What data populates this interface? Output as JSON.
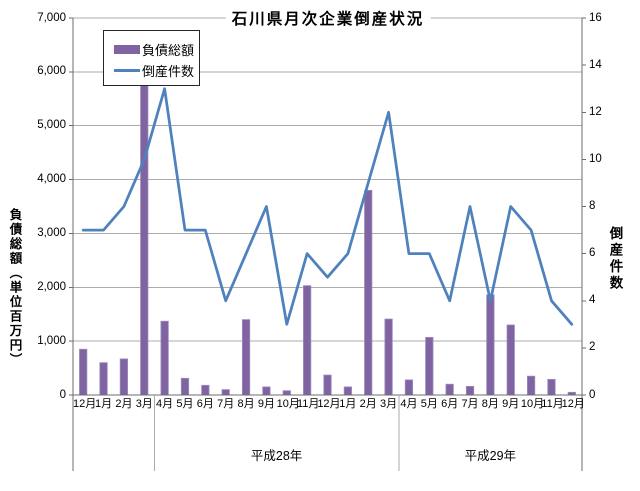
{
  "chart_data": {
    "type": "bar+line",
    "title": "石川県月次企業倒産状況",
    "categories": [
      "12月",
      "1月",
      "2月",
      "3月",
      "4月",
      "5月",
      "6月",
      "7月",
      "8月",
      "9月",
      "10月",
      "11月",
      "12月",
      "1月",
      "2月",
      "3月",
      "4月",
      "5月",
      "6月",
      "7月",
      "8月",
      "9月",
      "10月",
      "11月",
      "12月"
    ],
    "category_groups": [
      {
        "label": "",
        "start": 0,
        "end": 3
      },
      {
        "label": "平成28年",
        "start": 4,
        "end": 15
      },
      {
        "label": "平成29年",
        "start": 16,
        "end": 24
      }
    ],
    "series": [
      {
        "name": "負債総額",
        "type": "bar",
        "axis": "left",
        "color": "#8064A2",
        "edge_color": "#9B8BBE",
        "values": [
          850,
          600,
          670,
          5800,
          1370,
          310,
          180,
          100,
          1400,
          150,
          80,
          2030,
          370,
          150,
          3800,
          1410,
          280,
          1070,
          200,
          160,
          1860,
          1300,
          350,
          290,
          50
        ]
      },
      {
        "name": "倒産件数",
        "type": "line",
        "axis": "right",
        "color": "#4F81BD",
        "values": [
          7,
          7,
          8,
          10,
          13,
          7,
          7,
          4,
          6,
          8,
          3,
          6,
          5,
          6,
          9,
          12,
          6,
          6,
          4,
          8,
          4,
          8,
          7,
          4,
          3
        ]
      }
    ],
    "y_left": {
      "title": "負債総額（単位百万円）",
      "min": 0,
      "max": 7000,
      "step": 1000,
      "tick_labels": [
        "0",
        "1,000",
        "2,000",
        "3,000",
        "4,000",
        "5,000",
        "6,000",
        "7,000"
      ]
    },
    "y_right": {
      "title": "倒産件数",
      "min": 0,
      "max": 16,
      "step": 2,
      "tick_labels": [
        "0",
        "2",
        "4",
        "6",
        "8",
        "10",
        "12",
        "14",
        "16"
      ]
    },
    "legend": {
      "position": "top-left-inside",
      "entries": [
        "負債総額",
        "倒産件数"
      ]
    },
    "grid": true,
    "colors": {
      "gridline": "#ABABAB",
      "axis": "#6E6E6E",
      "separator": "#ABABAB",
      "text": "#000000",
      "background": "#FFFFFF"
    }
  }
}
